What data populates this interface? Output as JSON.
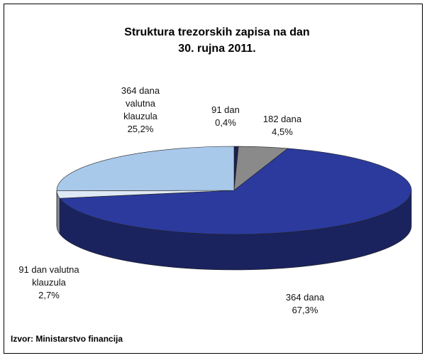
{
  "chart_data": {
    "type": "pie3d",
    "title": [
      "Struktura trezorskih zapisa na dan",
      "30. rujna 2011."
    ],
    "categories": [
      "91 dan",
      "182 dana",
      "364 dana",
      "91 dan valutna klauzula",
      "364 dana valutna klauzula"
    ],
    "values": [
      0.4,
      4.5,
      67.3,
      2.7,
      25.2
    ],
    "value_labels": [
      "0,4%",
      "4,5%",
      "67,3%",
      "2,7%",
      "25,2%"
    ],
    "colors": [
      "#1c1f4f",
      "#8a8a8a",
      "#2b3a9c",
      "#dfe9f6",
      "#a9c9eb"
    ],
    "source": "Izvor: Ministarstvo financija"
  }
}
